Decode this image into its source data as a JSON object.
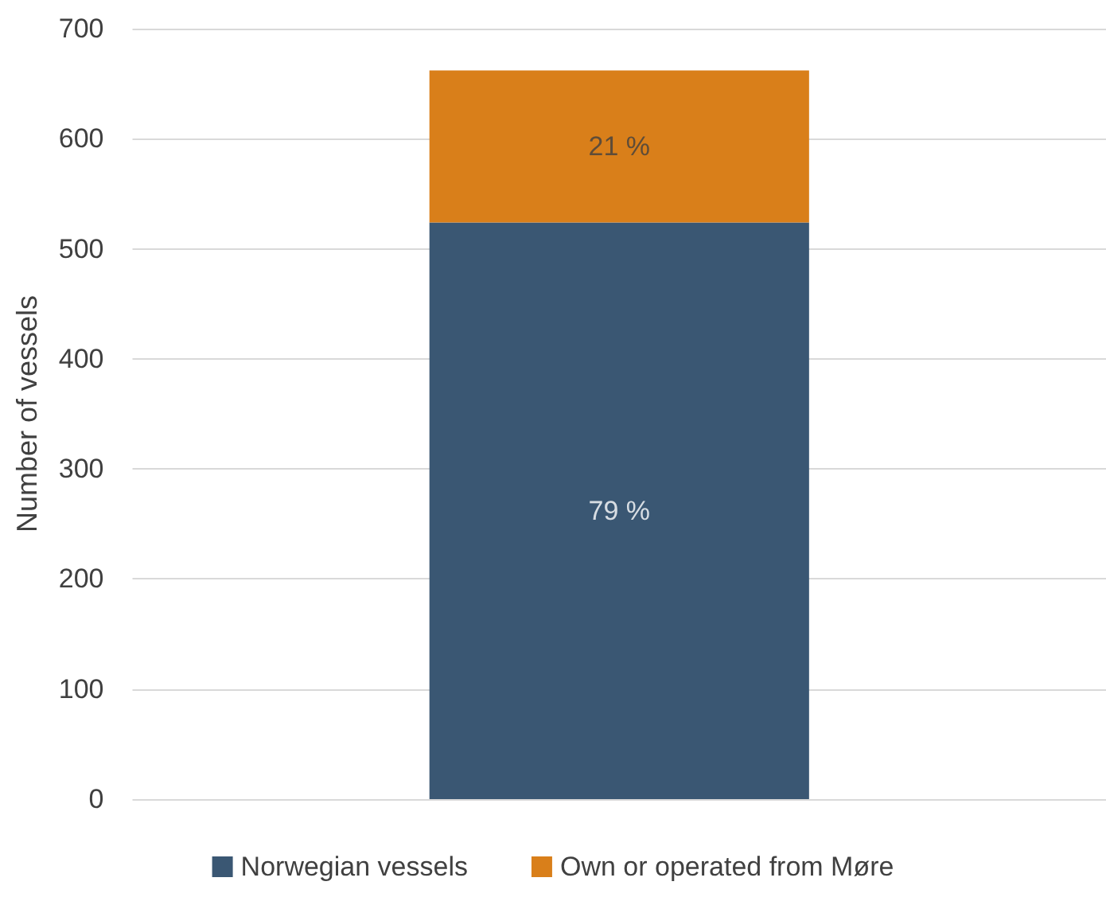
{
  "chart_data": {
    "type": "bar",
    "ylabel": "Number of vessels",
    "categories": [
      null
    ],
    "stacked": true,
    "series": [
      {
        "name": "Norwegian vessels",
        "color": "#3a5773",
        "values": [
          524
        ]
      },
      {
        "name": "Own or operated from Møre",
        "color": "#d97f1a",
        "values": [
          138
        ]
      }
    ],
    "annotations": [
      "79 %",
      "21 %"
    ],
    "ylim": [
      0,
      700
    ],
    "yticks": [
      0,
      100,
      200,
      300,
      400,
      500,
      600,
      700
    ],
    "grid": "y",
    "legend": "bottom"
  }
}
